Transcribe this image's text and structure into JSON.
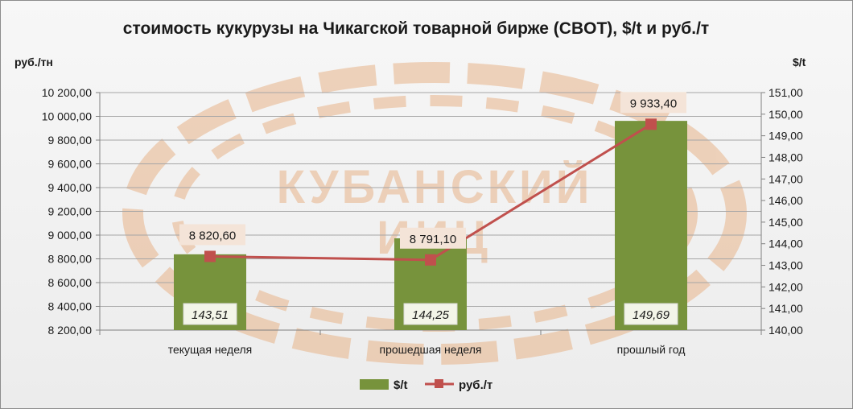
{
  "chart_data": {
    "type": "bar",
    "title": "стоимость кукурузы на Чикагской товарной бирже (CBOT), $/t и руб./т",
    "y_left_label": "руб./тн",
    "y_right_label": "$/t",
    "categories": [
      "текущая неделя",
      "прошедшая неделя",
      "прошлый год"
    ],
    "series": [
      {
        "name": "$/t",
        "type": "bar",
        "axis": "right",
        "values": [
          143.51,
          144.25,
          149.69
        ],
        "labels": [
          "143,51",
          "144,25",
          "149,69"
        ],
        "color": "#77933c"
      },
      {
        "name": "руб./т",
        "type": "line",
        "axis": "left",
        "values": [
          8820.6,
          8791.1,
          9933.4
        ],
        "labels": [
          "8 820,60",
          "8 791,10",
          "9 933,40"
        ],
        "color": "#c0504d"
      }
    ],
    "y_left": {
      "min": 8200,
      "max": 10200,
      "step": 200,
      "ticks": [
        "8 200,00",
        "8 400,00",
        "8 600,00",
        "8 800,00",
        "9 000,00",
        "9 200,00",
        "9 400,00",
        "9 600,00",
        "9 800,00",
        "10 000,00",
        "10 200,00"
      ]
    },
    "y_right": {
      "min": 140,
      "max": 151,
      "step": 1,
      "ticks": [
        "140,00",
        "141,00",
        "142,00",
        "143,00",
        "144,00",
        "145,00",
        "146,00",
        "147,00",
        "148,00",
        "149,00",
        "150,00",
        "151,00"
      ]
    },
    "grid": true,
    "legend_position": "bottom"
  },
  "watermark": {
    "line1": "КУБАНСКИЙ",
    "line2": "ИИЦ",
    "color": "#e8b48a"
  },
  "colors": {
    "bar": "#77933c",
    "line": "#c0504d",
    "label_bg_line": "#f4e4d8",
    "label_bg_bar": "#f3f5e8"
  }
}
